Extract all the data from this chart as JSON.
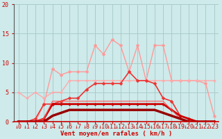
{
  "bg_color": "#ceeaea",
  "grid_color": "#aacccc",
  "xlabel": "Vent moyen/en rafales ( km/h )",
  "xlabel_color": "#cc0000",
  "x_ticks": [
    0,
    1,
    2,
    3,
    4,
    5,
    6,
    7,
    8,
    9,
    10,
    11,
    12,
    13,
    14,
    15,
    16,
    17,
    18,
    19,
    20,
    21,
    22,
    23
  ],
  "ylim": [
    0,
    20
  ],
  "xlim": [
    -0.5,
    23.5
  ],
  "yticks": [
    0,
    5,
    10,
    15,
    20
  ],
  "series": [
    {
      "x": [
        0,
        1,
        2,
        3,
        4,
        5,
        6,
        7,
        8,
        9,
        10,
        11,
        12,
        13,
        14,
        15,
        16,
        17,
        18,
        19,
        20,
        21,
        22,
        23
      ],
      "y": [
        0,
        0,
        0,
        3,
        9,
        8,
        8.5,
        8.5,
        8.5,
        13,
        11.5,
        14,
        13,
        8.5,
        13,
        7,
        13,
        13,
        7,
        7,
        7,
        7,
        6.5,
        1
      ],
      "color": "#ff9999",
      "lw": 1.0,
      "marker": "D",
      "ms": 2.5
    },
    {
      "x": [
        0,
        1,
        2,
        3,
        4,
        5,
        6,
        7,
        8,
        9,
        10,
        11,
        12,
        13,
        14,
        15,
        16,
        17,
        18,
        19,
        20,
        21,
        22,
        23
      ],
      "y": [
        5,
        4,
        5,
        4,
        5,
        5,
        7,
        7,
        7,
        7,
        7,
        7,
        7,
        7,
        7,
        7,
        7,
        7,
        7,
        7,
        7,
        7,
        7,
        7
      ],
      "color": "#ffaaaa",
      "lw": 1.0,
      "marker": "D",
      "ms": 2.0
    },
    {
      "x": [
        0,
        1,
        2,
        3,
        4,
        5,
        6,
        7,
        8,
        9,
        10,
        11,
        12,
        13,
        14,
        15,
        16,
        17,
        18,
        19,
        20,
        21,
        22,
        23
      ],
      "y": [
        0,
        0,
        0.5,
        3,
        3,
        3.5,
        4,
        4,
        5.5,
        6.5,
        6.5,
        6.5,
        6.5,
        8.5,
        7,
        7,
        6.5,
        4,
        3.5,
        1,
        0.5,
        0,
        0,
        0
      ],
      "color": "#ee3333",
      "lw": 1.2,
      "marker": "D",
      "ms": 2.5
    },
    {
      "x": [
        0,
        1,
        2,
        3,
        4,
        5,
        6,
        7,
        8,
        9,
        10,
        11,
        12,
        13,
        14,
        15,
        16,
        17,
        18,
        19,
        20,
        21,
        22,
        23
      ],
      "y": [
        0,
        0,
        0,
        0.5,
        3,
        3,
        3,
        3,
        3,
        3,
        3,
        3,
        3,
        3,
        3,
        3,
        3,
        3,
        2,
        1,
        0.5,
        0,
        0,
        0
      ],
      "color": "#cc0000",
      "lw": 2.0,
      "marker": "D",
      "ms": 2.0
    },
    {
      "x": [
        0,
        1,
        2,
        3,
        4,
        5,
        6,
        7,
        8,
        9,
        10,
        11,
        12,
        13,
        14,
        15,
        16,
        17,
        18,
        19,
        20,
        21,
        22,
        23
      ],
      "y": [
        0,
        0,
        0,
        0.5,
        3.5,
        3.5,
        3.5,
        3.5,
        3.5,
        3.5,
        3.5,
        3.5,
        3.5,
        3.5,
        3.5,
        3.5,
        3.5,
        3.5,
        2.0,
        0.5,
        0,
        0,
        0,
        0
      ],
      "color": "#ff5555",
      "lw": 0.8,
      "marker": null,
      "ms": 0
    },
    {
      "x": [
        0,
        1,
        2,
        3,
        4,
        5,
        6,
        7,
        8,
        9,
        10,
        11,
        12,
        13,
        14,
        15,
        16,
        17,
        18,
        19,
        20,
        21,
        22,
        23
      ],
      "y": [
        0,
        0,
        0,
        0,
        1,
        1.5,
        2,
        2,
        2,
        2,
        2,
        2,
        2,
        2,
        2,
        2,
        2,
        1.5,
        1,
        0.5,
        0,
        0,
        0,
        0
      ],
      "color": "#990000",
      "lw": 2.5,
      "marker": null,
      "ms": 0
    }
  ],
  "tick_color": "#cc0000",
  "tick_fontsize": 6,
  "axis_color": "#cc0000",
  "left_spine_color": "#555555"
}
